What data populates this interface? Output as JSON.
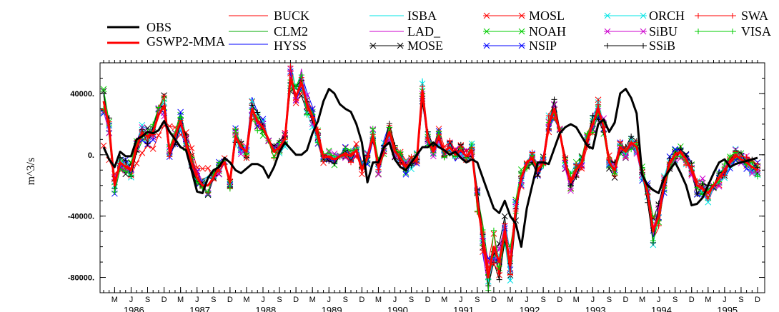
{
  "chart_data": {
    "type": "line",
    "title": "",
    "xlabel": "",
    "ylabel": "m^3/s",
    "ylim": [
      -90000,
      60000
    ],
    "yticks": [
      {
        "value": 40000,
        "label": "40000."
      },
      {
        "value": 0,
        "label": "0."
      },
      {
        "value": -40000,
        "label": "-40000."
      },
      {
        "value": -80000,
        "label": "-80000."
      }
    ],
    "month_ticks": [
      "M",
      "J",
      "S",
      "D"
    ],
    "years": [
      "1986",
      "1987",
      "1988",
      "1989",
      "1990",
      "1991",
      "1992",
      "1993",
      "1994",
      "1995"
    ],
    "start": "1986-01",
    "end": "1995-12",
    "grid": false,
    "legend_position": "top",
    "legend": [
      {
        "name": "OBS",
        "color": "#000000",
        "marker": "",
        "width": 3
      },
      {
        "name": "GSWP2-MMA",
        "color": "#ff0000",
        "marker": "",
        "width": 3
      },
      {
        "name": "BUCK",
        "color": "#ff0000",
        "marker": "",
        "width": 1
      },
      {
        "name": "CLM2",
        "color": "#00aa00",
        "marker": "",
        "width": 1
      },
      {
        "name": "HYSS",
        "color": "#0000ff",
        "marker": "",
        "width": 1
      },
      {
        "name": "ISBA",
        "color": "#00e5e5",
        "marker": "",
        "width": 1
      },
      {
        "name": "LAD_",
        "color": "#cc00cc",
        "marker": "",
        "width": 1
      },
      {
        "name": "MOSE",
        "color": "#000000",
        "marker": "x",
        "width": 1
      },
      {
        "name": "MOSL",
        "color": "#ff0000",
        "marker": "x",
        "width": 1
      },
      {
        "name": "NOAH",
        "color": "#00cc00",
        "marker": "x",
        "width": 1
      },
      {
        "name": "NSIP",
        "color": "#0000ff",
        "marker": "x",
        "width": 1
      },
      {
        "name": "ORCH",
        "color": "#00e5e5",
        "marker": "x",
        "width": 1
      },
      {
        "name": "SiBU",
        "color": "#cc00cc",
        "marker": "x",
        "width": 1
      },
      {
        "name": "SSiB",
        "color": "#000000",
        "marker": "+",
        "width": 1
      },
      {
        "name": "SWA",
        "color": "#ff0000",
        "marker": "+",
        "width": 1
      },
      {
        "name": "VISA",
        "color": "#00cc00",
        "marker": "+",
        "width": 1
      }
    ],
    "obs": [
      5000,
      -3000,
      -8000,
      2000,
      -1000,
      -1000,
      10000,
      12000,
      15000,
      14000,
      16000,
      22000,
      15000,
      10000,
      5000,
      3000,
      -10000,
      -24000,
      -25000,
      -15000,
      -10000,
      -8000,
      -2000,
      -5000,
      -10000,
      -12000,
      -9000,
      -6000,
      -6000,
      -8000,
      -15000,
      -8000,
      2000,
      8000,
      4000,
      0,
      0,
      3000,
      14000,
      22000,
      35000,
      43000,
      40000,
      33000,
      30000,
      28000,
      20000,
      8000,
      -18000,
      -5000,
      -5000,
      5000,
      8000,
      -3000,
      -8000,
      -10000,
      -5000,
      0,
      5000,
      5000,
      8000,
      5000,
      3000,
      0,
      2000,
      -2000,
      -5000,
      -3000,
      -5000,
      -15000,
      -25000,
      -35000,
      -38000,
      -30000,
      -40000,
      -45000,
      -60000,
      -35000,
      -20000,
      -5000,
      -5000,
      -6000,
      4000,
      14000,
      18000,
      20000,
      18000,
      12000,
      6000,
      4000,
      20000,
      23000,
      15000,
      21000,
      40000,
      43000,
      37000,
      27000,
      -13000,
      -20000,
      -23000,
      -25000,
      -15000,
      -10000,
      -5000,
      -12000,
      -20000,
      -33000,
      -32000,
      -28000,
      -20000,
      -12000,
      -5000,
      -3000,
      -8000,
      -6000,
      -5000,
      -4000,
      -3000,
      -2000
    ],
    "mma": [
      35000,
      18000,
      -20000,
      -5000,
      -8000,
      -10000,
      5000,
      14000,
      12000,
      15000,
      26000,
      32000,
      2000,
      12000,
      22000,
      8000,
      -5000,
      -15000,
      -20000,
      -20000,
      -15000,
      -8000,
      -5000,
      -18000,
      12000,
      5000,
      2000,
      30000,
      22000,
      18000,
      10000,
      2000,
      5000,
      10000,
      50000,
      38000,
      47000,
      33000,
      25000,
      12000,
      -2000,
      -1000,
      -3000,
      -1000,
      1000,
      -1000,
      3000,
      -10000,
      -2000,
      12000,
      -8000,
      5000,
      15000,
      2000,
      -2000,
      -8000,
      -5000,
      -3000,
      42000,
      10000,
      2000,
      12000,
      2000,
      5000,
      0,
      3000,
      -1000,
      3000,
      -30000,
      -55000,
      -80000,
      -60000,
      -70000,
      -50000,
      -72000,
      -35000,
      -15000,
      -5000,
      -2000,
      -10000,
      -5000,
      20000,
      30000,
      15000,
      -5000,
      -18000,
      -10000,
      -5000,
      10000,
      20000,
      30000,
      18000,
      -5000,
      -10000,
      5000,
      2000,
      8000,
      5000,
      -12000,
      -25000,
      -50000,
      -40000,
      -20000,
      -5000,
      0,
      2000,
      -3000,
      -10000,
      -20000,
      -22000,
      -25000,
      -20000,
      -15000,
      -10000,
      -5000,
      0,
      -3000,
      -5000,
      -8000,
      -10000
    ]
  }
}
